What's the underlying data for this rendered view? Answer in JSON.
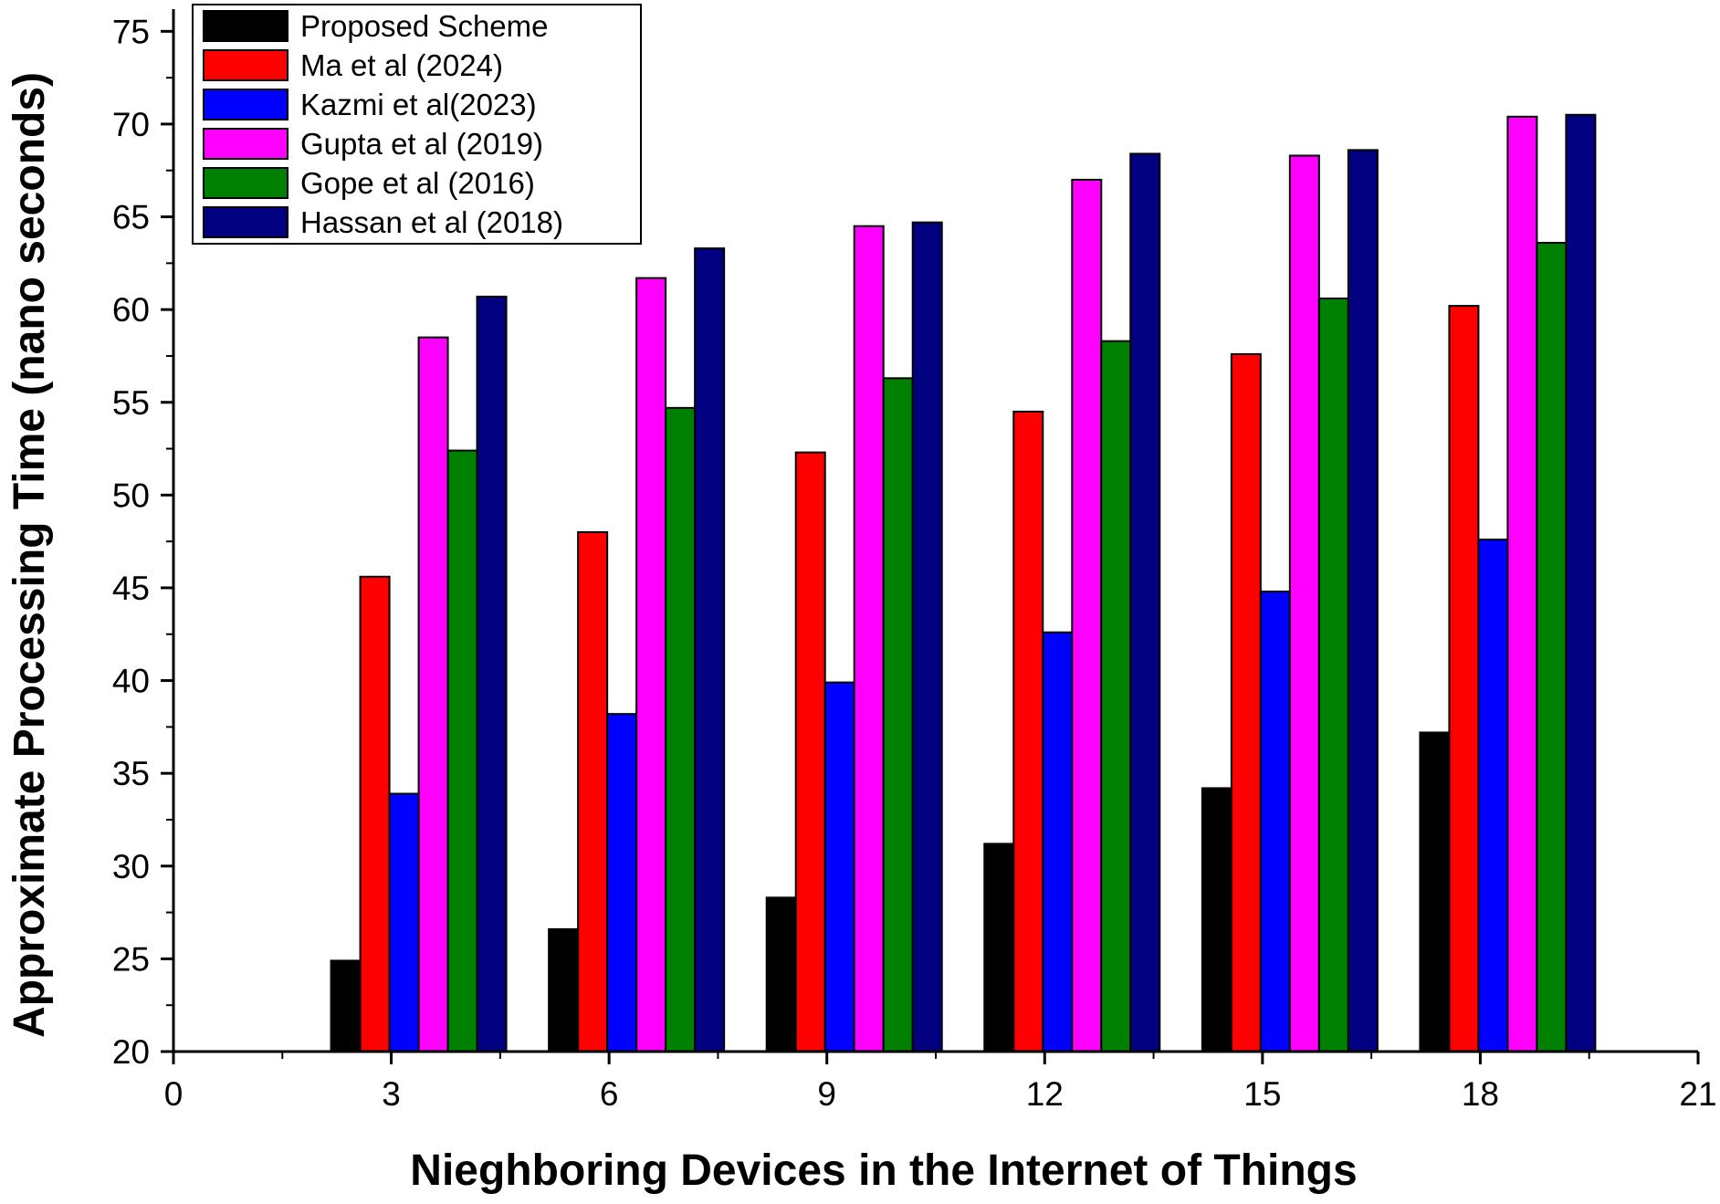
{
  "chart_data": {
    "type": "bar",
    "title": "",
    "xlabel": "Nieghboring Devices in the Internet of Things",
    "ylabel": "Approximate Processing Time (nano seconds)",
    "x": [
      3,
      6,
      9,
      12,
      15,
      18
    ],
    "xlim": [
      0,
      21
    ],
    "ylim": [
      20,
      76
    ],
    "xticks": [
      0,
      3,
      6,
      9,
      12,
      15,
      18,
      21
    ],
    "yticks": [
      20,
      25,
      30,
      35,
      40,
      45,
      50,
      55,
      60,
      65,
      70,
      75
    ],
    "legend_position": "top-left",
    "grid": false,
    "series": [
      {
        "name": "Proposed Scheme",
        "color": "#000000",
        "values": [
          24.9,
          26.6,
          28.3,
          31.2,
          34.2,
          37.2
        ]
      },
      {
        "name": "Ma et al (2024)",
        "color": "#ff0000",
        "values": [
          45.6,
          48.0,
          52.3,
          54.5,
          57.6,
          60.2
        ]
      },
      {
        "name": "Kazmi et al(2023)",
        "color": "#0000ff",
        "values": [
          33.9,
          38.2,
          39.9,
          42.6,
          44.8,
          47.6
        ]
      },
      {
        "name": "Gupta et al (2019)",
        "color": "#ff00ff",
        "values": [
          58.5,
          61.7,
          64.5,
          67.0,
          68.3,
          70.4
        ]
      },
      {
        "name": "Gope et al (2016)",
        "color": "#008000",
        "values": [
          52.4,
          54.7,
          56.3,
          58.3,
          60.6,
          63.6
        ]
      },
      {
        "name": "Hassan et al (2018)",
        "color": "#000080",
        "values": [
          60.7,
          63.3,
          64.7,
          68.4,
          68.6,
          70.5
        ]
      }
    ]
  }
}
